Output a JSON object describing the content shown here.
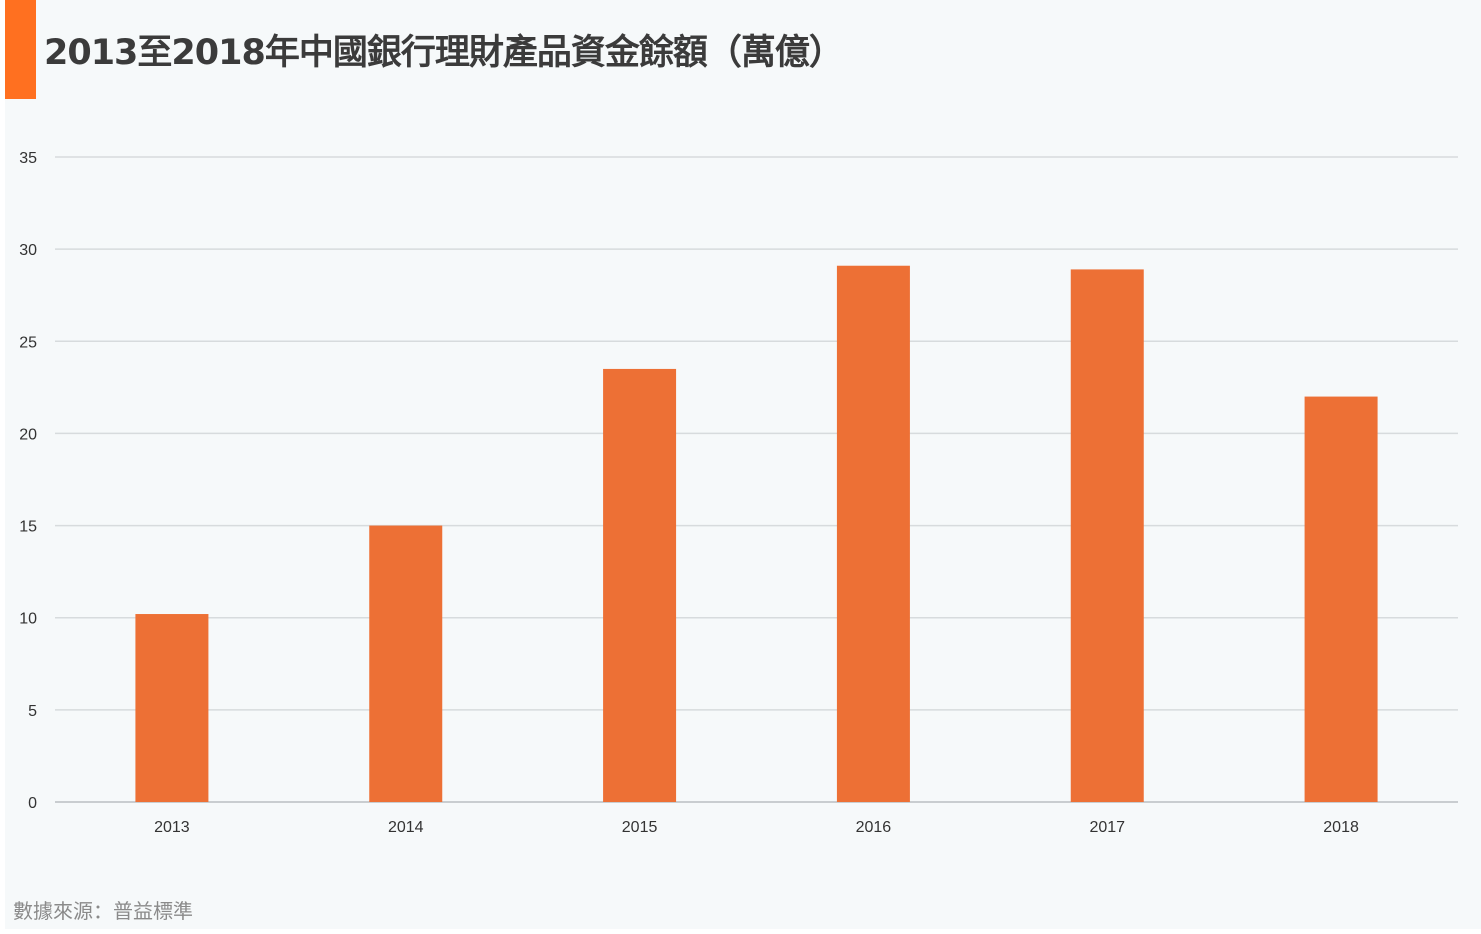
{
  "title": "2013至2018年中國銀行理財產品資金餘額（萬億）",
  "source": "數據來源：普益標準",
  "colors": {
    "accent": "#ff7020",
    "bar": "#ed7035",
    "grid": "#d7dbdd",
    "background": "#f6f9fa"
  },
  "chart_data": {
    "type": "bar",
    "title": "2013至2018年中國銀行理財產品資金餘額（萬億）",
    "categories": [
      "2013",
      "2014",
      "2015",
      "2016",
      "2017",
      "2018"
    ],
    "values": [
      10.2,
      15.0,
      23.5,
      29.1,
      28.9,
      22.0
    ],
    "xlabel": "",
    "ylabel": "",
    "ylim": [
      0,
      35
    ],
    "yticks": [
      "0",
      "5",
      "10",
      "15",
      "20",
      "25",
      "30",
      "35"
    ],
    "grid": true,
    "legend": "none"
  }
}
